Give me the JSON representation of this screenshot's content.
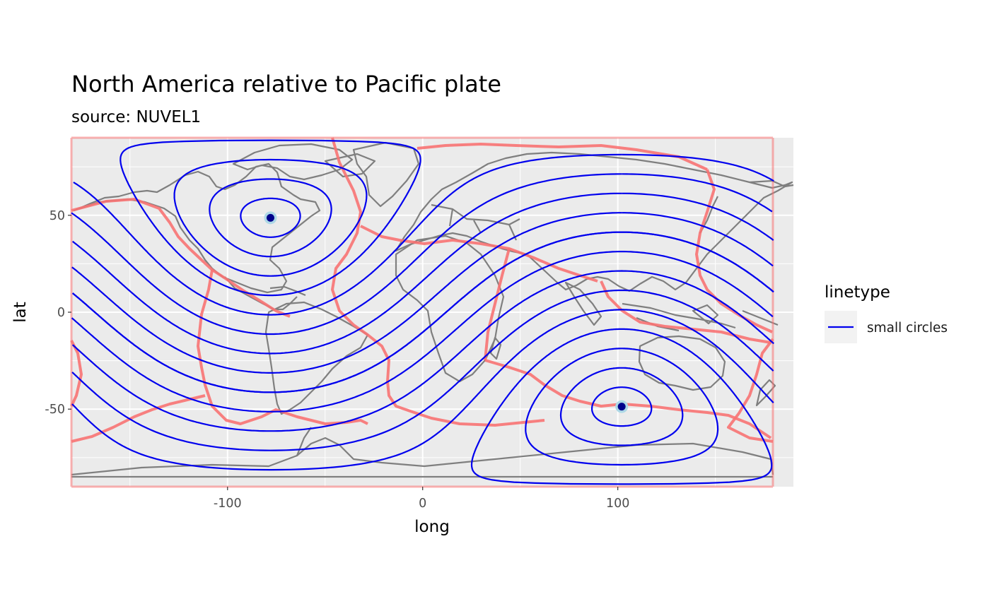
{
  "chart_data": {
    "type": "line",
    "title": "North America relative to Pacific plate",
    "subtitle": "source: NUVEL1",
    "xlabel": "long",
    "ylabel": "lat",
    "xlim": [
      -180,
      190
    ],
    "ylim": [
      -90,
      90
    ],
    "x_ticks": [
      -100,
      0,
      100
    ],
    "y_ticks": [
      50,
      0,
      -50
    ],
    "x_tick_labels": [
      "-100",
      "0",
      "100"
    ],
    "y_tick_labels": [
      "50",
      "0",
      "-50"
    ],
    "grid": true,
    "legend": {
      "title": "linetype",
      "placement": "right",
      "entries": [
        {
          "label": "small circles",
          "color": "#0000ee"
        }
      ]
    },
    "euler_pole": {
      "lon": -78,
      "lat": 48.7
    },
    "antipole": {
      "lon": 102,
      "lat": -48.7
    },
    "small_circle_angles_deg": [
      10,
      20,
      30,
      40,
      50,
      60,
      70,
      80,
      90
    ],
    "colors": {
      "panel": "#ebebeb",
      "grid": "#ffffff",
      "coastline": "#7f7f7f",
      "plate_boundary": "#f87373",
      "small_circle": "#0000ee",
      "pole_point": "#00008b",
      "pole_halo": "#add8e6"
    }
  }
}
